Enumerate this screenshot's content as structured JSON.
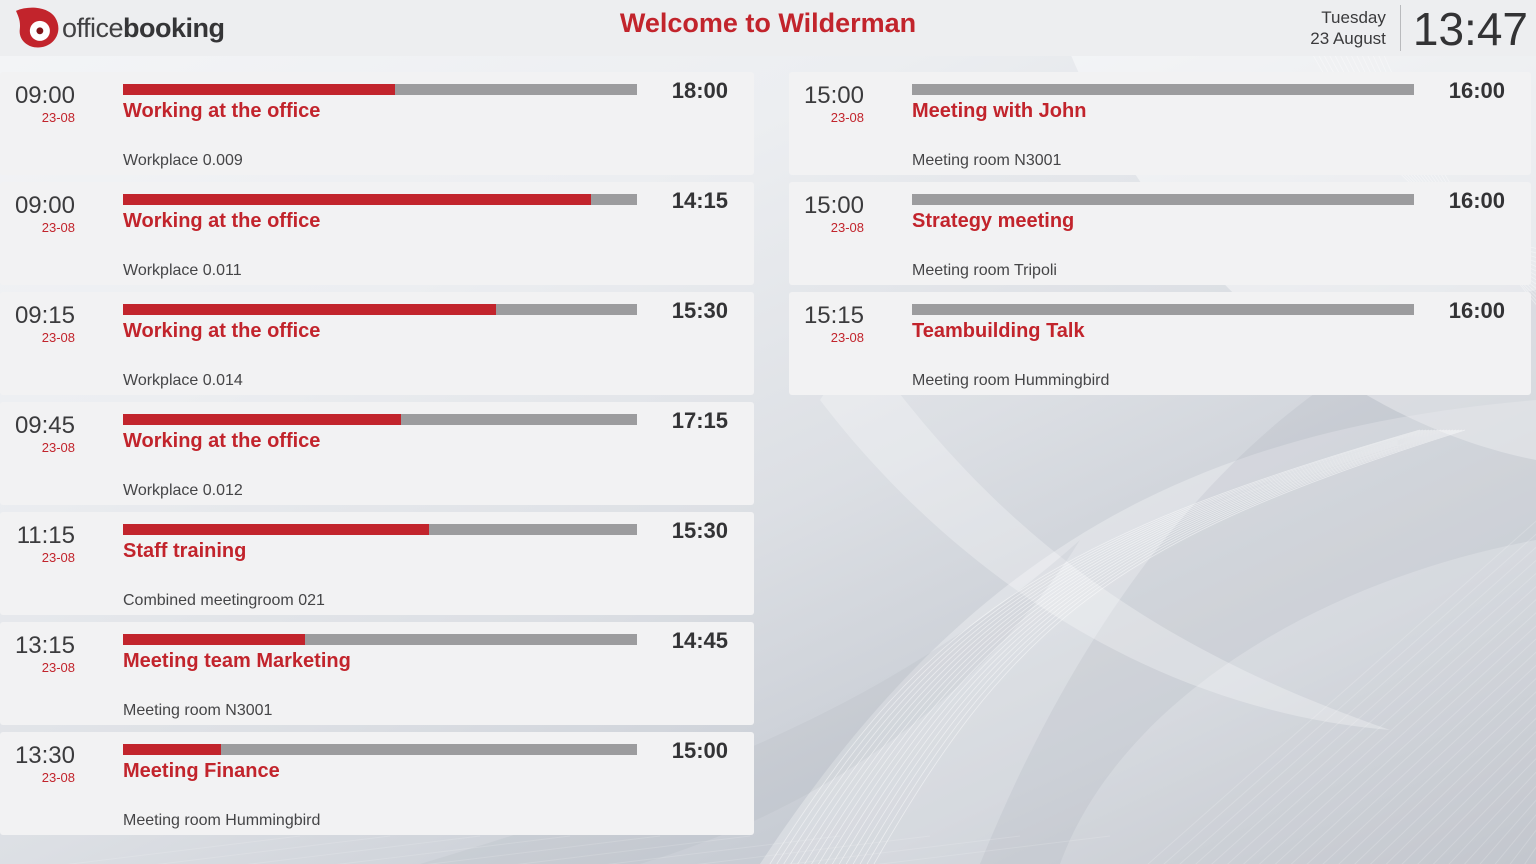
{
  "header": {
    "logo_office": "office",
    "logo_booking": "booking",
    "title": "Welcome to Wilderman",
    "weekday": "Tuesday",
    "date": "23 August",
    "clock": "13:47"
  },
  "colors": {
    "accent_red": "#c2242c",
    "bar_gray": "#9c9c9e",
    "card_bg": "#f2f2f3",
    "header_bg": "#edeef0"
  },
  "meetings_left": [
    {
      "start_time": "09:00",
      "start_date": "23-08",
      "end_time": "18:00",
      "title": "Working at the office",
      "location": "Workplace 0.009",
      "progress_percent": 53
    },
    {
      "start_time": "09:00",
      "start_date": "23-08",
      "end_time": "14:15",
      "title": "Working at the office",
      "location": "Workplace 0.011",
      "progress_percent": 91
    },
    {
      "start_time": "09:15",
      "start_date": "23-08",
      "end_time": "15:30",
      "title": "Working at the office",
      "location": "Workplace 0.014",
      "progress_percent": 72.5
    },
    {
      "start_time": "09:45",
      "start_date": "23-08",
      "end_time": "17:15",
      "title": "Working at the office",
      "location": "Workplace 0.012",
      "progress_percent": 54
    },
    {
      "start_time": "11:15",
      "start_date": "23-08",
      "end_time": "15:30",
      "title": "Staff training",
      "location": "Combined meetingroom 021",
      "progress_percent": 59.5
    },
    {
      "start_time": "13:15",
      "start_date": "23-08",
      "end_time": "14:45",
      "title": "Meeting team Marketing",
      "location": "Meeting room N3001",
      "progress_percent": 35.5
    },
    {
      "start_time": "13:30",
      "start_date": "23-08",
      "end_time": "15:00",
      "title": "Meeting Finance",
      "location": "Meeting room Hummingbird",
      "progress_percent": 19
    }
  ],
  "meetings_right": [
    {
      "start_time": "15:00",
      "start_date": "23-08",
      "end_time": "16:00",
      "title": "Meeting with John",
      "location": "Meeting room N3001",
      "progress_percent": 0
    },
    {
      "start_time": "15:00",
      "start_date": "23-08",
      "end_time": "16:00",
      "title": "Strategy meeting",
      "location": "Meeting room Tripoli",
      "progress_percent": 0
    },
    {
      "start_time": "15:15",
      "start_date": "23-08",
      "end_time": "16:00",
      "title": "Teambuilding Talk",
      "location": "Meeting room Hummingbird",
      "progress_percent": 0
    }
  ]
}
